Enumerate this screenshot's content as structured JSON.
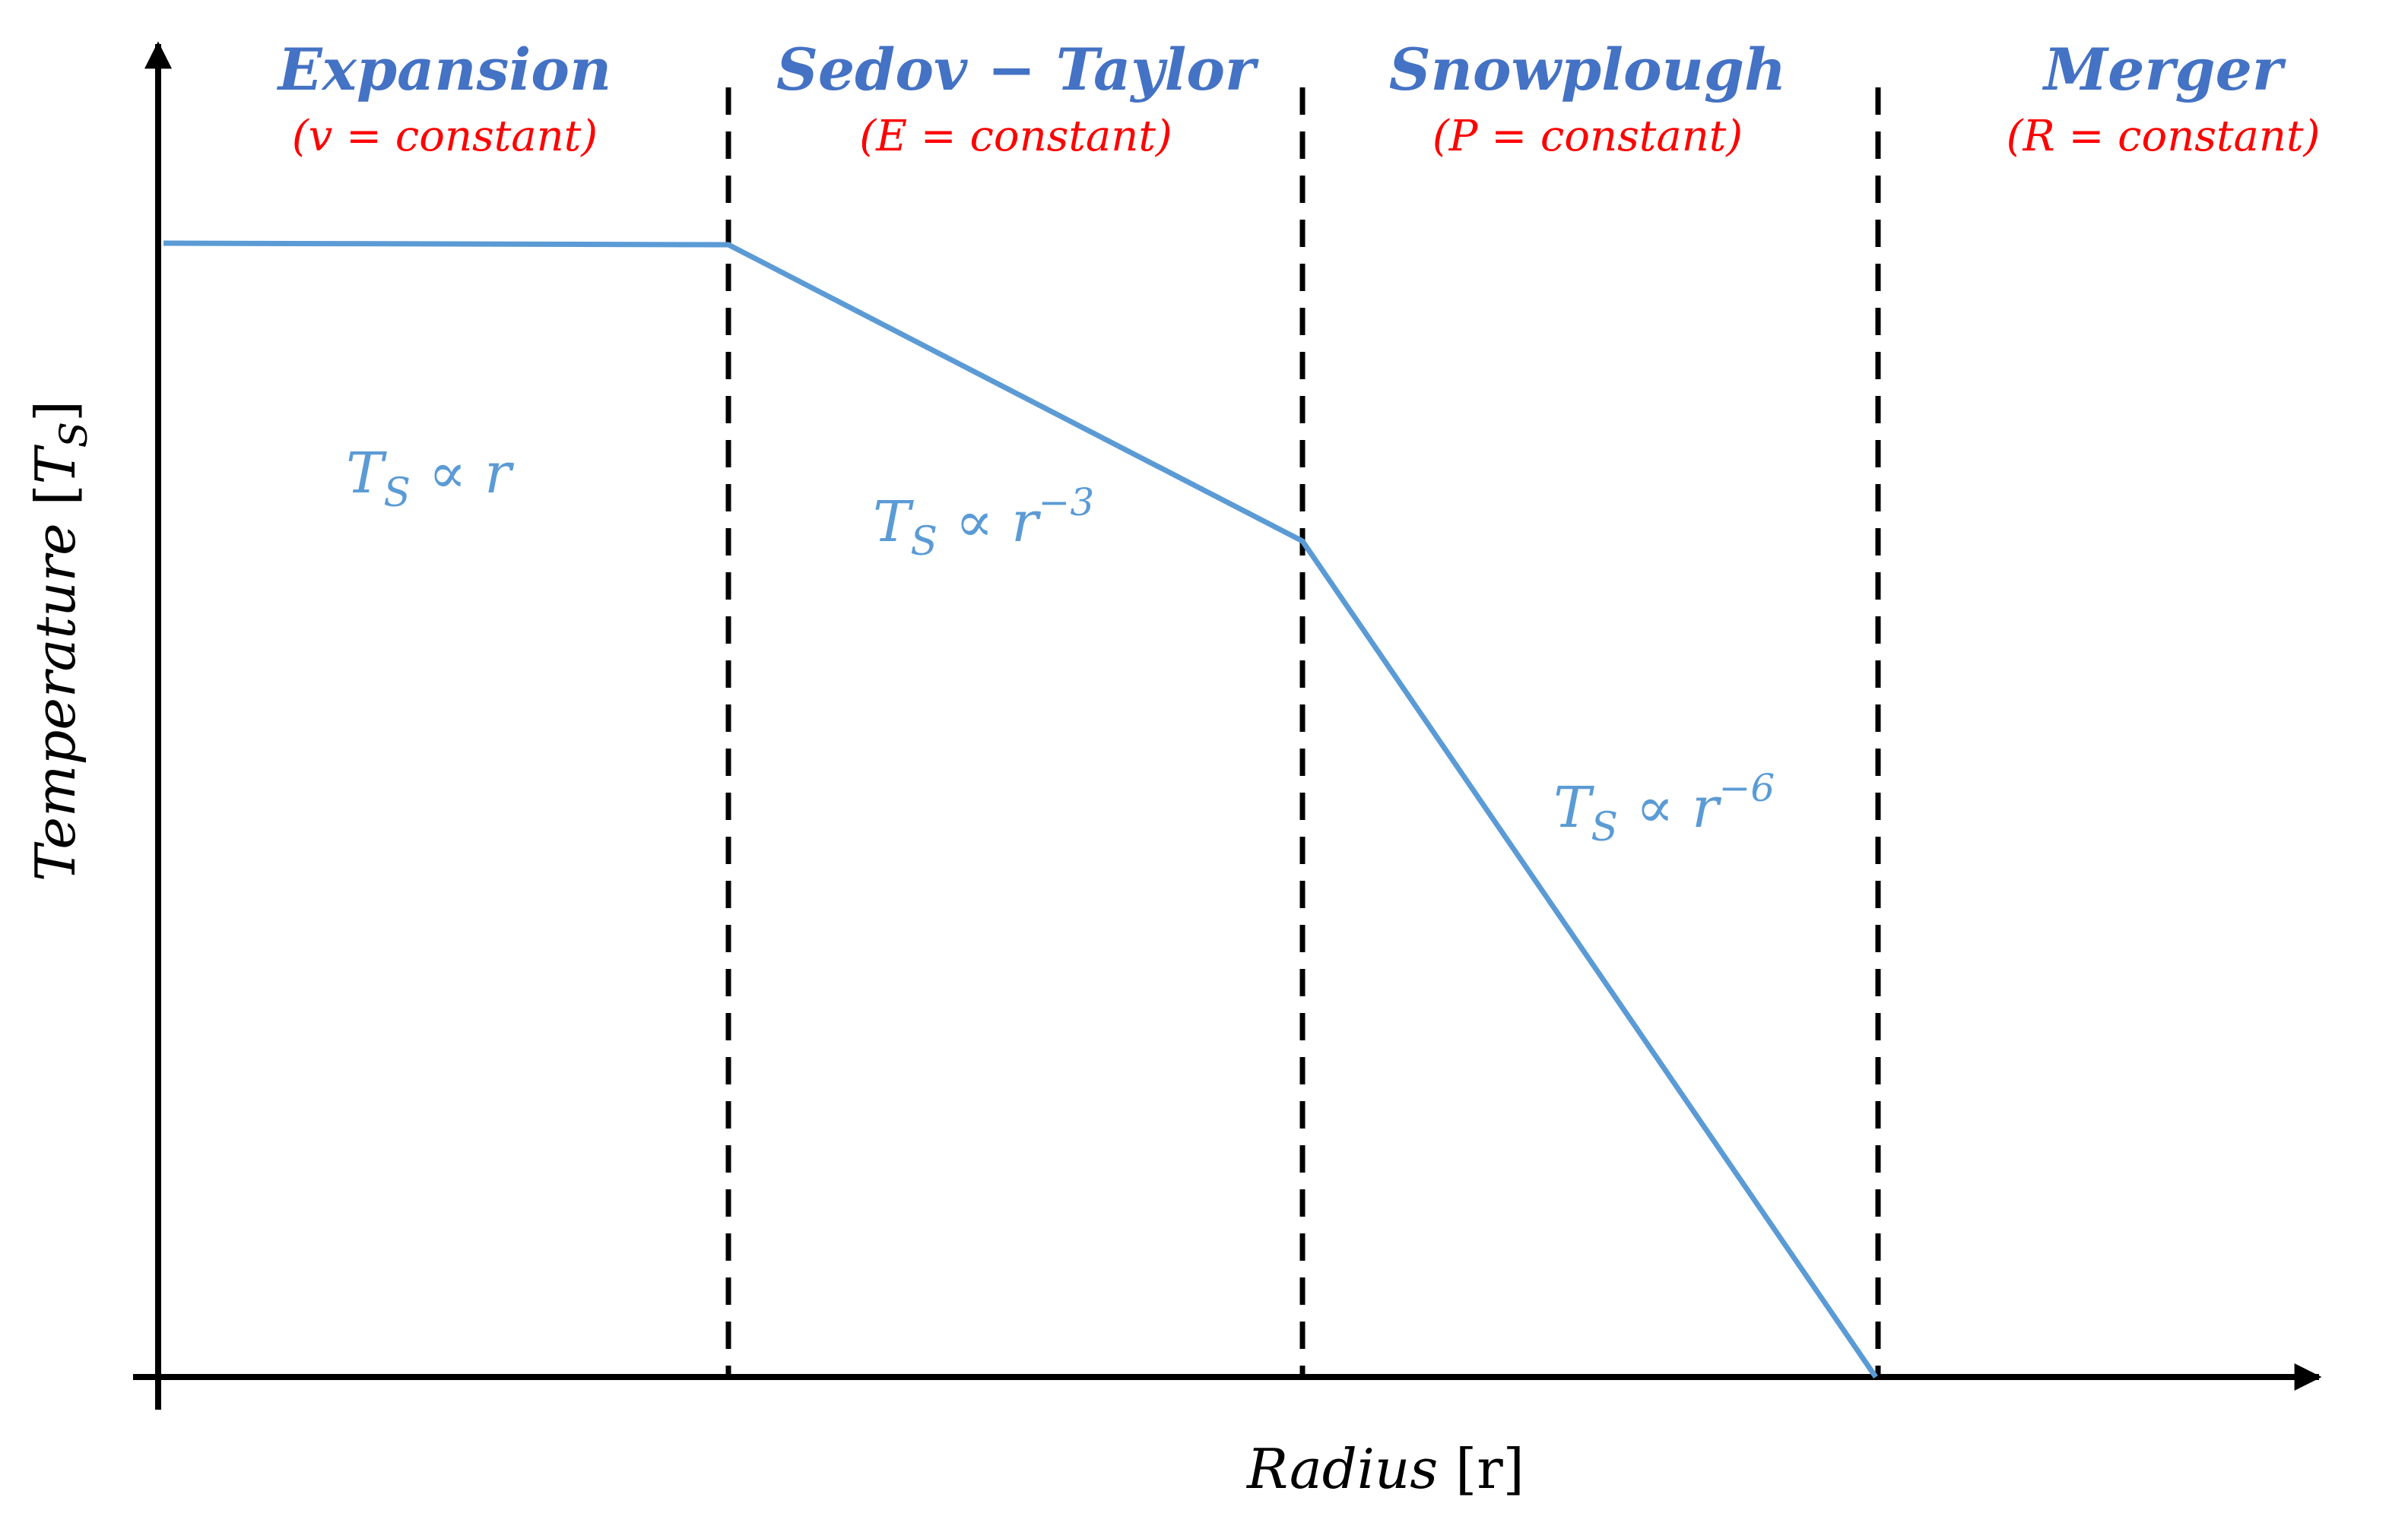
{
  "colors": {
    "axis": "#000000",
    "curve": "#5b9bd5",
    "phase_name": "#4472c4",
    "phase_condition": "#ff0000",
    "relation": "#5b9bd5",
    "boundary": "#000000"
  },
  "phases": [
    {
      "name": "Expansion",
      "condition": "(v =  constant)"
    },
    {
      "name": "Sedov − Taylor",
      "condition": "(E =  constant)"
    },
    {
      "name": "Snowplough",
      "condition": "(P =  constant)"
    },
    {
      "name": "Merger",
      "condition": "(R =  constant)"
    }
  ],
  "relations": [
    {
      "base": "T",
      "subscript": "S",
      "rest": " ∝ r",
      "exponent": ""
    },
    {
      "base": "T",
      "subscript": "S",
      "rest": " ∝ r",
      "exponent": "−3"
    },
    {
      "base": "T",
      "subscript": "S",
      "rest": " ∝ r",
      "exponent": "−6"
    }
  ],
  "axes": {
    "x_label_main": "Radius ",
    "x_label_unit": "[r]",
    "y_label_main": "Temperature ",
    "y_label_bracket_open": "[",
    "y_label_base": "T",
    "y_label_subscript": "S",
    "y_label_bracket_close": "]"
  }
}
